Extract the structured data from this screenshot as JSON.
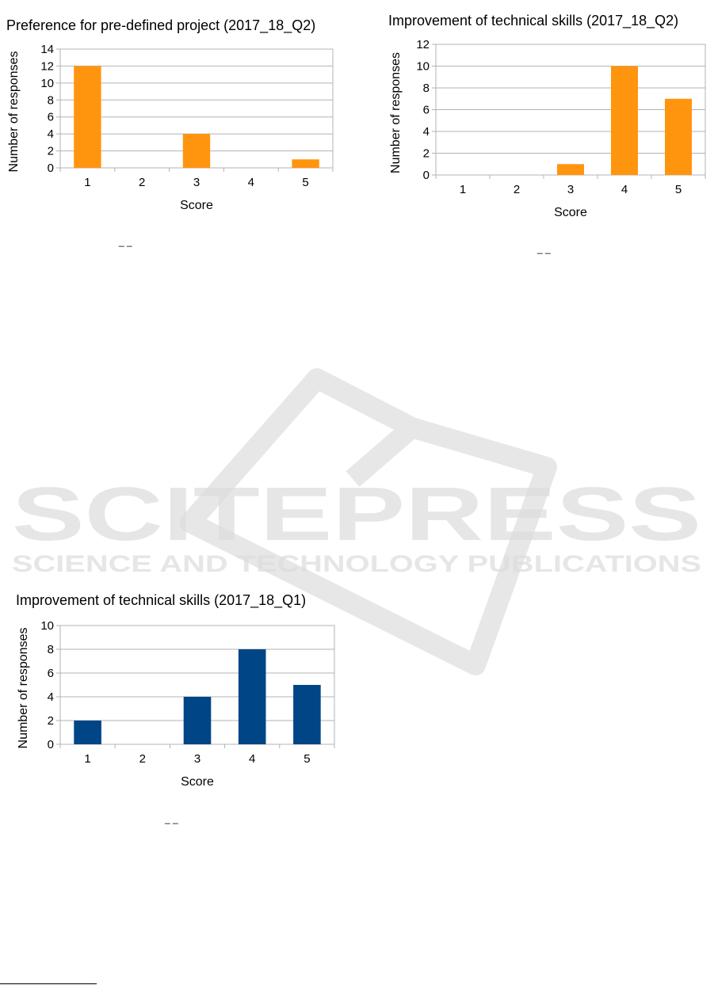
{
  "watermark": {
    "brand": "SCITEPRESS",
    "tagline": "SCIENCE AND TECHNOLOGY PUBLICATIONS"
  },
  "page": {
    "separator_marks": "_    _"
  },
  "chart_data": [
    {
      "id": "chart-1",
      "type": "bar",
      "title": "Preference for pre-defined project (2017_18_Q2)",
      "xlabel": "Score",
      "ylabel": "Number of responses",
      "categories": [
        "1",
        "2",
        "3",
        "4",
        "5"
      ],
      "values": [
        12,
        0,
        4,
        0,
        1
      ],
      "ylim": [
        0,
        14
      ],
      "yticks": [
        0,
        2,
        4,
        6,
        8,
        10,
        12,
        14
      ],
      "bar_color": "#ff950e",
      "grid": true,
      "legend": "none"
    },
    {
      "id": "chart-2",
      "type": "bar",
      "title": "Improvement of technical skills (2017_18_Q2)",
      "xlabel": "Score",
      "ylabel": "Number of responses",
      "categories": [
        "1",
        "2",
        "3",
        "4",
        "5"
      ],
      "values": [
        0,
        0,
        1,
        10,
        7
      ],
      "ylim": [
        0,
        12
      ],
      "yticks": [
        0,
        2,
        4,
        6,
        8,
        10,
        12
      ],
      "bar_color": "#ff950e",
      "grid": true,
      "legend": "none"
    },
    {
      "id": "chart-3",
      "type": "bar",
      "title": "Improvement of technical skills (2017_18_Q1)",
      "xlabel": "Score",
      "ylabel": "Number of responses",
      "categories": [
        "1",
        "2",
        "3",
        "4",
        "5"
      ],
      "values": [
        2,
        0,
        4,
        8,
        5
      ],
      "ylim": [
        0,
        10
      ],
      "yticks": [
        0,
        2,
        4,
        6,
        8,
        10
      ],
      "bar_color": "#004586",
      "grid": true,
      "legend": "none"
    }
  ]
}
